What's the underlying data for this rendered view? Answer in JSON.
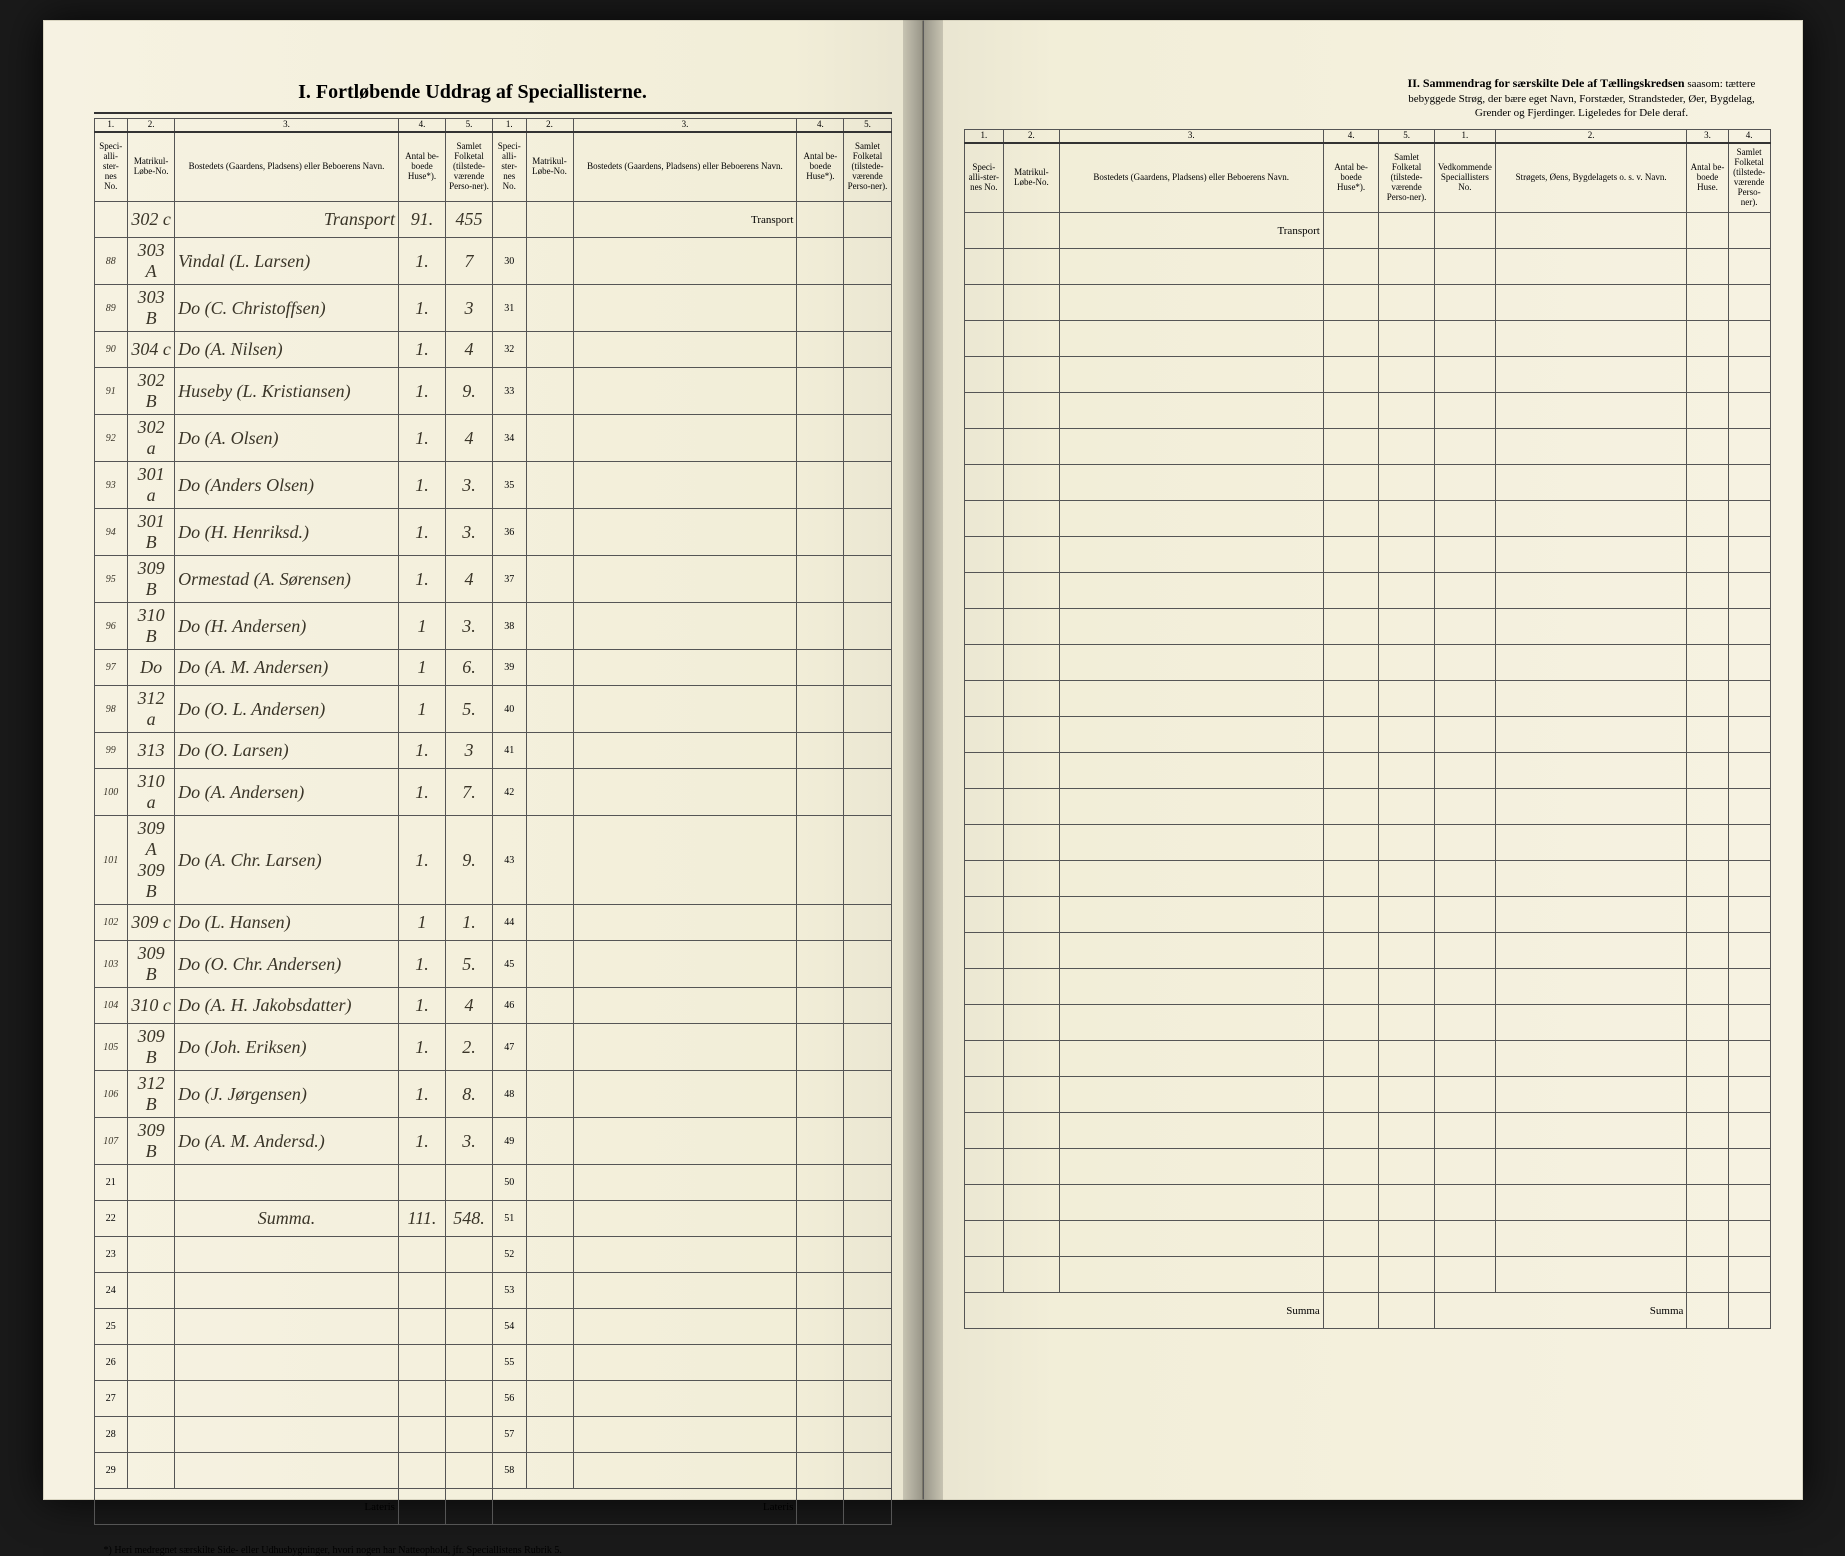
{
  "colors": {
    "page_bg": "#f4f0e0",
    "ink": "#3a3528",
    "rule": "#555555",
    "outer_bg": "#1a1a1a"
  },
  "title_section1": "I.  Fortløbende Uddrag af Speciallisterne.",
  "title_section2_bold": "II.  Sammendrag for særskilte Dele af Tællingskredsen",
  "title_section2_rest": " saasom: tættere bebyggede Strøg, der bære eget Navn, Forstæder, Strandsteder, Øer, Bygdelag, Grender og Fjerdinger. Ligeledes for Dele deraf.",
  "columns_sec1": {
    "nums": [
      "1.",
      "2.",
      "3.",
      "4.",
      "5."
    ],
    "headers": [
      "Speci-alli-ster-nes No.",
      "Matrikul-Løbe-No.",
      "Bostedets (Gaardens, Pladsens) eller Beboerens Navn.",
      "Antal be-boede Huse*).",
      "Samlet Folketal (tilstede-værende Perso-ner)."
    ]
  },
  "columns_sec2": {
    "nums": [
      "1.",
      "2.",
      "3.",
      "4."
    ],
    "headers": [
      "Vedkommende Speciallisters No.",
      "Strøgets, Øens, Bygdelagets o. s. v. Navn.",
      "Antal be-boede Huse.",
      "Samlet Folketal (tilstede-værende Perso-ner)."
    ]
  },
  "transport_label": "Transport",
  "lateris_label": "Lateris",
  "summa_label": "Summa",
  "footnote": "*) Heri medregnet særskilte Side- eller Udhusbygninger, hvori nogen har Natteophold, jfr. Speciallistens Rubrik 5.",
  "transport_row": {
    "lobe": "302 c",
    "name": "Transport",
    "huse": "91.",
    "folk": "455"
  },
  "rows": [
    {
      "no": "88",
      "lobe": "303 A",
      "name": "Vindal     (L. Larsen)",
      "huse": "1.",
      "folk": "7"
    },
    {
      "no": "89",
      "lobe": "303 B",
      "name": "Do          (C. Christoffsen)",
      "huse": "1.",
      "folk": "3"
    },
    {
      "no": "90",
      "lobe": "304 c",
      "name": "Do          (A. Nilsen)",
      "huse": "1.",
      "folk": "4"
    },
    {
      "no": "91",
      "lobe": "302 B",
      "name": "Huseby    (L. Kristiansen)",
      "huse": "1.",
      "folk": "9."
    },
    {
      "no": "92",
      "lobe": "302 a",
      "name": "Do          (A. Olsen)",
      "huse": "1.",
      "folk": "4"
    },
    {
      "no": "93",
      "lobe": "301 a",
      "name": "Do          (Anders Olsen)",
      "huse": "1.",
      "folk": "3."
    },
    {
      "no": "94",
      "lobe": "301 B",
      "name": "Do          (H. Henriksd.)",
      "huse": "1.",
      "folk": "3."
    },
    {
      "no": "95",
      "lobe": "309 B",
      "name": "Ormestad (A. Sørensen)",
      "huse": "1.",
      "folk": "4"
    },
    {
      "no": "96",
      "lobe": "310 B",
      "name": "Do          (H. Andersen)",
      "huse": "1",
      "folk": "3."
    },
    {
      "no": "97",
      "lobe": "Do",
      "name": "Do          (A. M. Andersen)",
      "huse": "1",
      "folk": "6."
    },
    {
      "no": "98",
      "lobe": "312 a",
      "name": "Do          (O. L. Andersen)",
      "huse": "1",
      "folk": "5."
    },
    {
      "no": "99",
      "lobe": "313",
      "name": "Do          (O. Larsen)",
      "huse": "1.",
      "folk": "3"
    },
    {
      "no": "100",
      "lobe": "310 a",
      "name": "Do          (A. Andersen)",
      "huse": "1.",
      "folk": "7."
    },
    {
      "no": "101",
      "lobe": "309 A 309 B",
      "name": "Do          (A. Chr. Larsen)",
      "huse": "1.",
      "folk": "9."
    },
    {
      "no": "102",
      "lobe": "309 c",
      "name": "Do          (L. Hansen)",
      "huse": "1",
      "folk": "1."
    },
    {
      "no": "103",
      "lobe": "309 B",
      "name": "Do          (O. Chr. Andersen)",
      "huse": "1.",
      "folk": "5."
    },
    {
      "no": "104",
      "lobe": "310 c",
      "name": "Do          (A. H. Jakobsdatter)",
      "huse": "1.",
      "folk": "4"
    },
    {
      "no": "105",
      "lobe": "309 B",
      "name": "Do          (Joh. Eriksen)",
      "huse": "1.",
      "folk": "2."
    },
    {
      "no": "106",
      "lobe": "312 B",
      "name": "Do          (J. Jørgensen)",
      "huse": "1.",
      "folk": "8."
    },
    {
      "no": "107",
      "lobe": "309 B",
      "name": "Do          (A. M. Andersd.)",
      "huse": "1.",
      "folk": "3."
    }
  ],
  "summa_row": {
    "name": "Summa.",
    "huse": "111.",
    "folk": "548."
  },
  "left_block2_start": 30,
  "left_block2_end": 58,
  "blank_rows_left": [
    "21",
    "22",
    "23",
    "24",
    "25",
    "26",
    "27",
    "28",
    "29"
  ]
}
